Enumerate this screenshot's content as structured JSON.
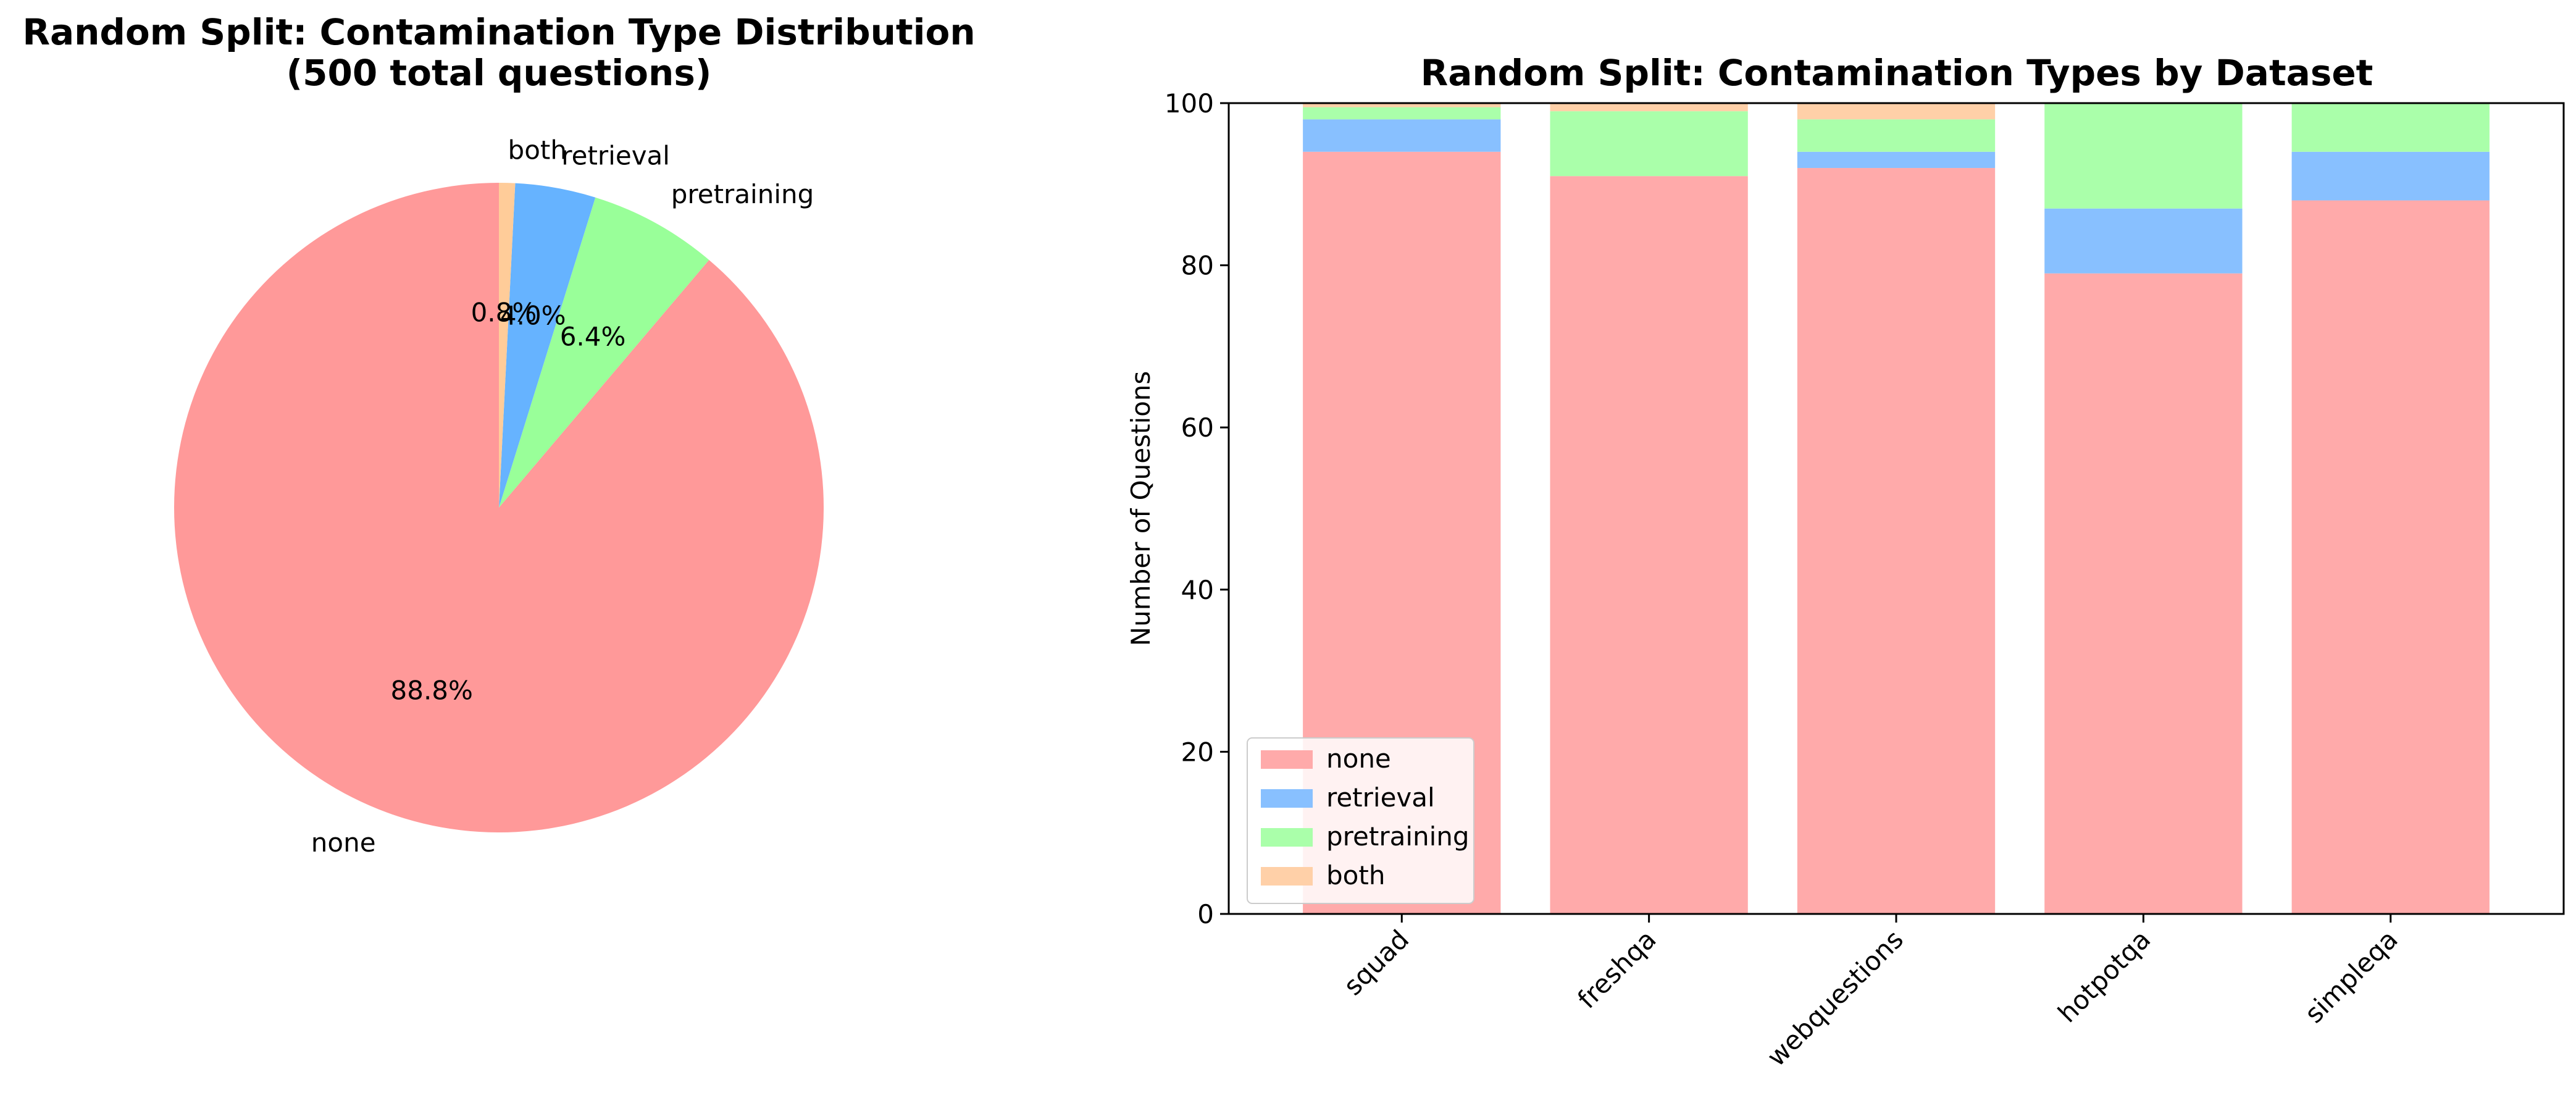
{
  "chart_data": [
    {
      "type": "pie",
      "title": "Random Split: Contamination Type Distribution",
      "subtitle": "(500 total questions)",
      "slices": [
        {
          "label": "none",
          "value": 88.8,
          "pct_label": "88.8%",
          "color": "#ff9999"
        },
        {
          "label": "pretraining",
          "value": 6.4,
          "pct_label": "6.4%",
          "color": "#99ff99"
        },
        {
          "label": "retrieval",
          "value": 4.0,
          "pct_label": "4.0%",
          "color": "#66b3ff"
        },
        {
          "label": "both",
          "value": 0.8,
          "pct_label": "0.8%",
          "color": "#ffcc99"
        }
      ]
    },
    {
      "type": "bar",
      "stacked": true,
      "title": "Random Split: Contamination Types by Dataset",
      "xlabel": "",
      "ylabel": "Number of Questions",
      "ylim": [
        0,
        100
      ],
      "yticks": [
        "0",
        "20",
        "40",
        "60",
        "80",
        "100"
      ],
      "categories": [
        "squad",
        "freshqa",
        "webquestions",
        "hotpotqa",
        "simpleqa"
      ],
      "series": [
        {
          "name": "none",
          "color": "#ffaaaa",
          "values": [
            94,
            91,
            92,
            79,
            88
          ]
        },
        {
          "name": "retrieval",
          "color": "#88c0ff",
          "values": [
            4,
            0,
            2,
            8,
            6
          ]
        },
        {
          "name": "pretraining",
          "color": "#aaffaa",
          "values": [
            1.5,
            8,
            4,
            13,
            6
          ]
        },
        {
          "name": "both",
          "color": "#ffd0a8",
          "values": [
            0.5,
            1,
            2,
            0,
            0
          ]
        }
      ],
      "legend_position": "lower-left"
    }
  ]
}
